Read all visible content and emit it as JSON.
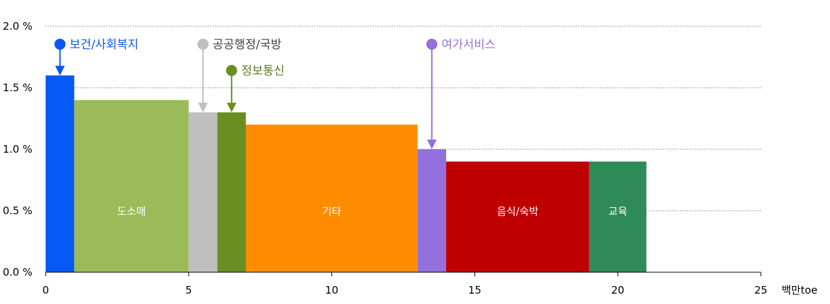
{
  "chart_data": {
    "type": "bar",
    "subtype": "variable-width",
    "x_unit_label": "백만toe",
    "xlim": [
      0,
      25
    ],
    "ylim": [
      0,
      2.0
    ],
    "xticks": [
      0,
      5,
      10,
      15,
      20,
      25
    ],
    "yticks": [
      0.0,
      0.5,
      1.0,
      1.5,
      2.0
    ],
    "ytick_labels": [
      "0.0 %",
      "0.5 %",
      "1.0 %",
      "1.5 %",
      "2.0 %"
    ],
    "grid": "horizontal dotted",
    "segments": [
      {
        "label": "보건/사회복지",
        "x_start": 0,
        "x_end": 1,
        "value": 1.6,
        "color": "#0759F5",
        "label_mode": "callout"
      },
      {
        "label": "도소매",
        "x_start": 1,
        "x_end": 5,
        "value": 1.4,
        "color": "#9BBB59",
        "label_mode": "inside"
      },
      {
        "label": "공공행정/국방",
        "x_start": 5,
        "x_end": 6,
        "value": 1.3,
        "color": "#BFBFBF",
        "label_mode": "callout"
      },
      {
        "label": "정보통신",
        "x_start": 6,
        "x_end": 7,
        "value": 1.3,
        "color": "#6B8E23",
        "label_mode": "callout"
      },
      {
        "label": "기타",
        "x_start": 7,
        "x_end": 13,
        "value": 1.2,
        "color": "#FF8C00",
        "label_mode": "inside"
      },
      {
        "label": "여가서비스",
        "x_start": 13,
        "x_end": 14,
        "value": 1.0,
        "color": "#9370DB",
        "label_mode": "callout"
      },
      {
        "label": "음식/숙박",
        "x_start": 14,
        "x_end": 19,
        "value": 0.9,
        "color": "#C00000",
        "label_mode": "inside"
      },
      {
        "label": "교육",
        "x_start": 19,
        "x_end": 21,
        "value": 0.9,
        "color": "#2E8B57",
        "label_mode": "inside"
      }
    ],
    "callout_text_colors": {
      "보건/사회복지": "#0759F5",
      "공공행정/국방": "#404040",
      "정보통신": "#5A7A1E",
      "여가서비스": "#9370DB"
    }
  }
}
